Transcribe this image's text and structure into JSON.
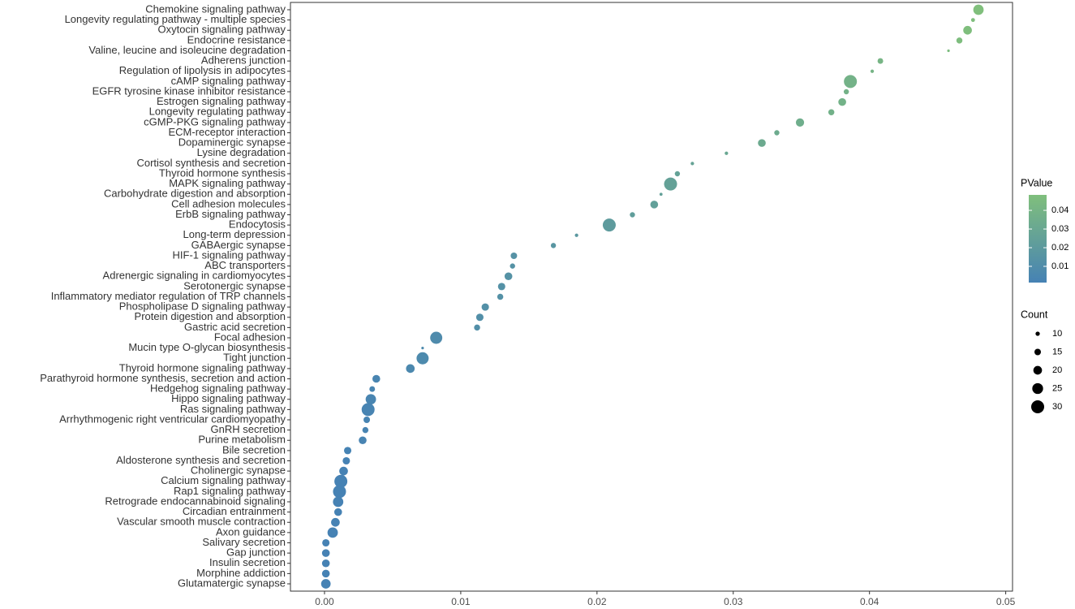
{
  "chart_data": {
    "type": "scatter",
    "categories": [
      "Chemokine signaling pathway",
      "Longevity regulating pathway - multiple species",
      "Oxytocin signaling pathway",
      "Endocrine resistance",
      "Valine, leucine and isoleucine degradation",
      "Adherens junction",
      "Regulation of lipolysis in adipocytes",
      "cAMP signaling pathway",
      "EGFR tyrosine kinase inhibitor resistance",
      "Estrogen signaling pathway",
      "Longevity regulating pathway",
      "cGMP-PKG signaling pathway",
      "ECM-receptor interaction",
      "Dopaminergic synapse",
      "Lysine degradation",
      "Cortisol synthesis and secretion",
      "Thyroid hormone synthesis",
      "MAPK signaling pathway",
      "Carbohydrate digestion and absorption",
      "Cell adhesion molecules",
      "ErbB signaling pathway",
      "Endocytosis",
      "Long-term depression",
      "GABAergic synapse",
      "HIF-1 signaling pathway",
      "ABC transporters",
      "Adrenergic signaling in cardiomyocytes",
      "Serotonergic synapse",
      "Inflammatory mediator regulation of TRP channels",
      "Phospholipase D signaling pathway",
      "Protein digestion and absorption",
      "Gastric acid secretion",
      "Focal adhesion",
      "Mucin type O-glycan biosynthesis",
      "Tight junction",
      "Thyroid hormone signaling pathway",
      "Parathyroid hormone synthesis, secretion and action",
      "Hedgehog signaling pathway",
      "Hippo signaling pathway",
      "Ras signaling pathway",
      "Arrhythmogenic right ventricular cardiomyopathy",
      "GnRH secretion",
      "Purine metabolism",
      "Bile secretion",
      "Aldosterone synthesis and secretion",
      "Cholinergic synapse",
      "Calcium signaling pathway",
      "Rap1 signaling pathway",
      "Retrograde endocannabinoid signaling",
      "Circadian entrainment",
      "Vascular smooth muscle contraction",
      "Axon guidance",
      "Salivary secretion",
      "Gap junction",
      "Insulin secretion",
      "Morphine addiction",
      "Glutamatergic synapse"
    ],
    "values": [
      0.048,
      0.0476,
      0.0472,
      0.0466,
      0.0458,
      0.0408,
      0.0402,
      0.0386,
      0.0383,
      0.038,
      0.0372,
      0.0349,
      0.0332,
      0.0321,
      0.0295,
      0.027,
      0.0259,
      0.0254,
      0.0247,
      0.0242,
      0.0226,
      0.0209,
      0.0185,
      0.0168,
      0.0139,
      0.0138,
      0.0135,
      0.013,
      0.0129,
      0.0118,
      0.0114,
      0.0112,
      0.0082,
      0.0072,
      0.0072,
      0.0063,
      0.0038,
      0.0035,
      0.0034,
      0.0032,
      0.0031,
      0.003,
      0.0028,
      0.0017,
      0.0016,
      0.0014,
      0.0012,
      0.0011,
      0.001,
      0.001,
      0.0008,
      0.0006,
      0.0001,
      0.0001,
      0.0001,
      0.0001,
      0.0001
    ],
    "sizes": [
      24,
      9,
      20,
      14,
      6,
      13,
      8,
      30,
      12,
      18,
      14,
      19,
      12,
      18,
      8,
      8,
      12,
      30,
      7,
      18,
      12,
      30,
      8,
      12,
      15,
      12,
      18,
      17,
      14,
      17,
      17,
      14,
      28,
      6,
      28,
      20,
      18,
      13,
      24,
      30,
      15,
      14,
      18,
      17,
      17,
      20,
      30,
      30,
      24,
      18,
      20,
      24,
      17,
      18,
      18,
      18,
      22
    ],
    "xlim": [
      -0.0025,
      0.0505
    ],
    "xticks": [
      {
        "value": 0,
        "label": "0.00"
      },
      0.01,
      0.02,
      0.03,
      0.04,
      0.05
    ],
    "color_legend": {
      "title": "PValue",
      "low_color": "#4682b4",
      "high_color": "#80bf7c",
      "range": [
        0.0013,
        0.0483
      ],
      "ticks": [
        0.01,
        0.02,
        0.03,
        0.04
      ]
    },
    "size_legend": {
      "title": "Count",
      "ticks": [
        10,
        15,
        20,
        25,
        30
      ]
    }
  }
}
